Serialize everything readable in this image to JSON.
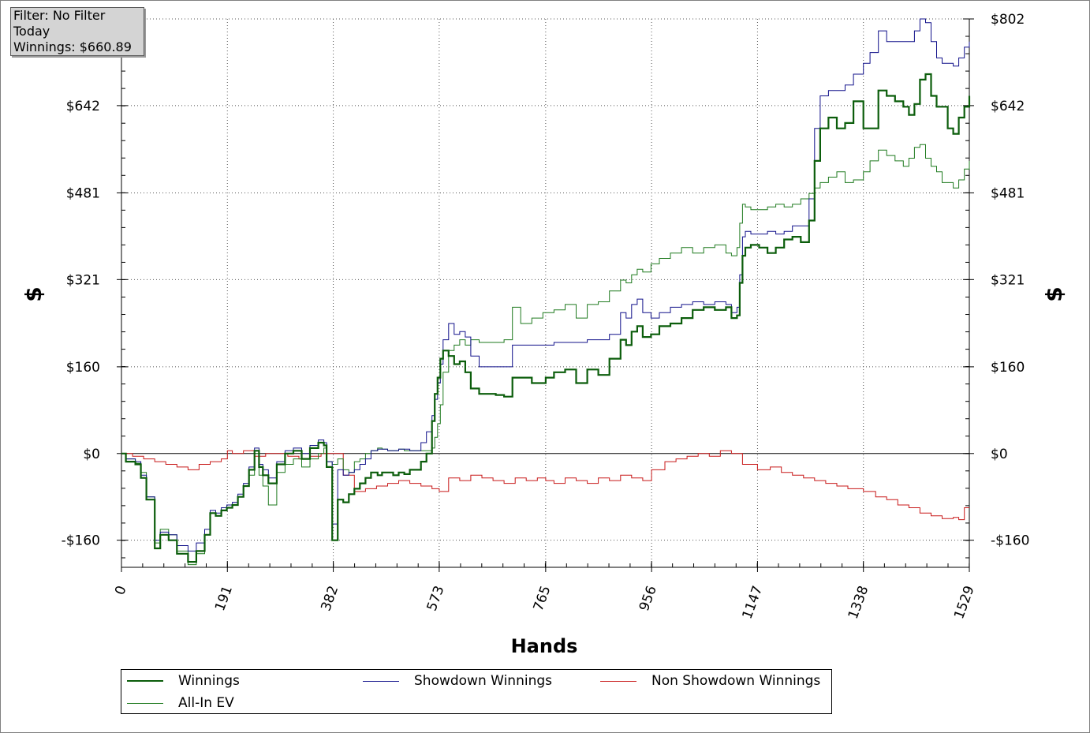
{
  "info": {
    "filter": "Filter: No Filter",
    "period": "Today",
    "winnings": "Winnings: $660.89"
  },
  "colors": {
    "winnings": "#0b5d0b",
    "showdown": "#10108a",
    "nonshowdown": "#c81818",
    "allin": "#1e7a1e"
  },
  "chart_data": {
    "type": "line",
    "xlabel": "Hands",
    "ylabel": "$",
    "xlim": [
      0,
      1529
    ],
    "ylim": [
      -210,
      802
    ],
    "x_ticks": [
      0,
      191,
      382,
      573,
      765,
      956,
      1147,
      1338,
      1529
    ],
    "x_tick_labels": [
      "0",
      "191",
      "382",
      "573",
      "765",
      "956",
      "1147",
      "1338",
      "1529"
    ],
    "y_ticks": [
      -160,
      0,
      160,
      321,
      481,
      642
    ],
    "y_tick_labels": [
      "-$160",
      "$0",
      "$160",
      "$321",
      "$481",
      "$642"
    ],
    "y_right_ticks": [
      -160,
      0,
      160,
      321,
      481,
      642,
      802
    ],
    "y_right_tick_labels": [
      "-$160",
      "$0",
      "$160",
      "$321",
      "$481",
      "$642",
      "$802"
    ],
    "grid": true,
    "legend_position": "bottom",
    "series": [
      {
        "name": "Winnings",
        "x": [
          0,
          8,
          25,
          35,
          45,
          60,
          70,
          85,
          100,
          120,
          135,
          150,
          160,
          170,
          180,
          190,
          200,
          210,
          220,
          230,
          240,
          248,
          255,
          265,
          280,
          295,
          310,
          325,
          340,
          355,
          365,
          370,
          380,
          390,
          400,
          410,
          420,
          430,
          440,
          450,
          462,
          470,
          480,
          490,
          500,
          510,
          520,
          530,
          540,
          550,
          560,
          565,
          570,
          575,
          580,
          590,
          600,
          610,
          620,
          630,
          645,
          660,
          675,
          690,
          705,
          720,
          740,
          760,
          765,
          780,
          800,
          820,
          840,
          860,
          880,
          900,
          910,
          920,
          930,
          940,
          955,
          970,
          990,
          1010,
          1030,
          1050,
          1070,
          1090,
          1100,
          1110,
          1115,
          1120,
          1125,
          1135,
          1150,
          1165,
          1180,
          1195,
          1210,
          1225,
          1240,
          1250,
          1260,
          1275,
          1290,
          1305,
          1320,
          1338,
          1350,
          1365,
          1380,
          1395,
          1410,
          1420,
          1430,
          1440,
          1450,
          1460,
          1470,
          1480,
          1490,
          1500,
          1510,
          1520,
          1529
        ],
        "values": [
          0,
          -15,
          -20,
          -45,
          -85,
          -175,
          -150,
          -160,
          -185,
          -200,
          -180,
          -150,
          -110,
          -115,
          -105,
          -100,
          -95,
          -80,
          -60,
          -30,
          5,
          -25,
          -40,
          -55,
          -20,
          0,
          5,
          -10,
          10,
          20,
          15,
          -25,
          -160,
          -85,
          -90,
          -75,
          -65,
          -55,
          -45,
          -35,
          -40,
          -35,
          -35,
          -40,
          -35,
          -38,
          -30,
          -30,
          -15,
          0,
          60,
          110,
          140,
          175,
          190,
          180,
          165,
          170,
          150,
          120,
          110,
          110,
          108,
          105,
          140,
          140,
          130,
          130,
          140,
          150,
          155,
          130,
          155,
          145,
          175,
          210,
          200,
          225,
          235,
          215,
          220,
          235,
          240,
          250,
          265,
          270,
          265,
          270,
          250,
          255,
          315,
          365,
          380,
          385,
          380,
          370,
          380,
          395,
          400,
          390,
          430,
          540,
          600,
          620,
          600,
          610,
          650,
          600,
          600,
          670,
          660,
          650,
          640,
          625,
          645,
          690,
          700,
          660,
          640,
          640,
          600,
          590,
          620,
          640,
          660
        ]
      },
      {
        "name": "Showdown Winnings",
        "x": [
          0,
          8,
          25,
          35,
          45,
          60,
          70,
          85,
          100,
          120,
          135,
          150,
          160,
          170,
          180,
          190,
          200,
          210,
          220,
          230,
          240,
          248,
          255,
          265,
          280,
          295,
          310,
          325,
          340,
          355,
          365,
          370,
          380,
          390,
          400,
          410,
          420,
          430,
          440,
          450,
          462,
          470,
          480,
          490,
          500,
          510,
          520,
          530,
          540,
          550,
          560,
          565,
          570,
          575,
          580,
          590,
          600,
          610,
          620,
          630,
          645,
          660,
          675,
          690,
          705,
          720,
          740,
          760,
          765,
          780,
          800,
          820,
          840,
          860,
          880,
          900,
          910,
          920,
          930,
          940,
          955,
          970,
          990,
          1010,
          1030,
          1050,
          1070,
          1090,
          1100,
          1110,
          1115,
          1120,
          1125,
          1135,
          1150,
          1165,
          1180,
          1195,
          1210,
          1225,
          1240,
          1250,
          1260,
          1275,
          1290,
          1305,
          1320,
          1338,
          1350,
          1365,
          1380,
          1395,
          1410,
          1420,
          1430,
          1440,
          1450,
          1460,
          1470,
          1480,
          1490,
          1500,
          1510,
          1520,
          1529
        ],
        "values": [
          0,
          -10,
          -15,
          -40,
          -80,
          -160,
          -145,
          -150,
          -170,
          -180,
          -165,
          -140,
          -105,
          -110,
          -100,
          -95,
          -90,
          -75,
          -55,
          -25,
          10,
          -20,
          -30,
          -45,
          -15,
          5,
          10,
          0,
          15,
          25,
          20,
          -15,
          -130,
          -30,
          -40,
          -35,
          -30,
          -20,
          -10,
          5,
          8,
          8,
          5,
          5,
          8,
          8,
          5,
          5,
          20,
          40,
          70,
          100,
          130,
          165,
          210,
          240,
          220,
          225,
          215,
          180,
          160,
          160,
          160,
          160,
          200,
          200,
          200,
          200,
          200,
          205,
          205,
          205,
          210,
          210,
          220,
          260,
          250,
          275,
          285,
          260,
          250,
          260,
          270,
          275,
          280,
          275,
          280,
          275,
          260,
          270,
          330,
          400,
          410,
          405,
          405,
          410,
          405,
          410,
          420,
          420,
          470,
          600,
          660,
          670,
          670,
          680,
          700,
          720,
          740,
          780,
          760,
          760,
          760,
          760,
          780,
          802,
          795,
          760,
          730,
          720,
          720,
          715,
          730,
          750,
          760
        ]
      },
      {
        "name": "Non Showdown Winnings",
        "x": [
          0,
          20,
          40,
          60,
          80,
          100,
          120,
          140,
          160,
          180,
          191,
          200,
          220,
          240,
          260,
          280,
          300,
          320,
          340,
          360,
          382,
          400,
          420,
          440,
          460,
          480,
          500,
          520,
          540,
          560,
          573,
          590,
          610,
          630,
          650,
          670,
          690,
          710,
          730,
          750,
          765,
          780,
          800,
          820,
          840,
          860,
          880,
          900,
          920,
          940,
          956,
          980,
          1000,
          1020,
          1040,
          1060,
          1080,
          1100,
          1120,
          1147,
          1170,
          1190,
          1210,
          1230,
          1250,
          1270,
          1290,
          1310,
          1338,
          1360,
          1380,
          1400,
          1420,
          1440,
          1460,
          1480,
          1500,
          1510,
          1520,
          1529
        ],
        "values": [
          0,
          -5,
          -10,
          -15,
          -20,
          -25,
          -30,
          -20,
          -15,
          -10,
          5,
          0,
          5,
          -5,
          0,
          0,
          -5,
          -10,
          -5,
          0,
          0,
          -40,
          -70,
          -65,
          -60,
          -55,
          -50,
          -55,
          -60,
          -65,
          -70,
          -45,
          -50,
          -40,
          -45,
          -50,
          -55,
          -45,
          -50,
          -45,
          -50,
          -55,
          -45,
          -50,
          -55,
          -45,
          -50,
          -40,
          -45,
          -50,
          -30,
          -15,
          -10,
          -5,
          0,
          -5,
          5,
          0,
          -20,
          -30,
          -25,
          -35,
          -40,
          -45,
          -50,
          -55,
          -60,
          -65,
          -70,
          -80,
          -85,
          -95,
          -100,
          -110,
          -115,
          -120,
          -118,
          -122,
          -100,
          -100
        ]
      },
      {
        "name": "All-In EV",
        "x": [
          0,
          8,
          25,
          35,
          45,
          60,
          70,
          85,
          100,
          120,
          135,
          150,
          160,
          170,
          180,
          190,
          200,
          210,
          220,
          230,
          240,
          248,
          255,
          265,
          280,
          295,
          310,
          325,
          340,
          355,
          365,
          370,
          380,
          390,
          400,
          410,
          420,
          430,
          440,
          450,
          462,
          470,
          480,
          490,
          500,
          510,
          520,
          530,
          540,
          550,
          560,
          565,
          570,
          575,
          580,
          590,
          600,
          610,
          620,
          630,
          645,
          660,
          675,
          690,
          705,
          720,
          740,
          760,
          765,
          780,
          800,
          820,
          840,
          860,
          880,
          900,
          910,
          920,
          930,
          940,
          955,
          970,
          990,
          1010,
          1030,
          1050,
          1070,
          1090,
          1100,
          1110,
          1115,
          1120,
          1125,
          1135,
          1150,
          1165,
          1180,
          1195,
          1210,
          1225,
          1240,
          1250,
          1260,
          1275,
          1290,
          1305,
          1320,
          1338,
          1350,
          1365,
          1380,
          1395,
          1410,
          1420,
          1430,
          1440,
          1450,
          1460,
          1470,
          1480,
          1490,
          1500,
          1510,
          1520,
          1529
        ],
        "values": [
          0,
          -10,
          -18,
          -35,
          -80,
          -165,
          -140,
          -150,
          -180,
          -205,
          -185,
          -150,
          -110,
          -115,
          -105,
          -100,
          -95,
          -80,
          -60,
          -40,
          0,
          -40,
          -60,
          -95,
          -35,
          -20,
          -10,
          -25,
          -10,
          0,
          10,
          -15,
          -20,
          -10,
          -30,
          -35,
          -15,
          -10,
          0,
          5,
          10,
          8,
          5,
          5,
          8,
          5,
          5,
          5,
          5,
          5,
          10,
          30,
          55,
          90,
          150,
          190,
          200,
          210,
          200,
          210,
          205,
          205,
          205,
          210,
          270,
          240,
          250,
          260,
          260,
          265,
          275,
          250,
          275,
          280,
          300,
          320,
          315,
          330,
          340,
          335,
          350,
          360,
          370,
          380,
          370,
          380,
          385,
          370,
          365,
          380,
          425,
          460,
          455,
          450,
          450,
          455,
          460,
          455,
          460,
          470,
          480,
          490,
          500,
          510,
          520,
          500,
          505,
          520,
          540,
          560,
          550,
          540,
          530,
          545,
          565,
          570,
          545,
          530,
          520,
          500,
          500,
          490,
          505,
          525,
          540
        ]
      }
    ]
  },
  "legend": {
    "items": [
      {
        "label": "Winnings"
      },
      {
        "label": "Showdown Winnings"
      },
      {
        "label": "Non Showdown Winnings"
      },
      {
        "label": "All-In EV"
      }
    ]
  }
}
